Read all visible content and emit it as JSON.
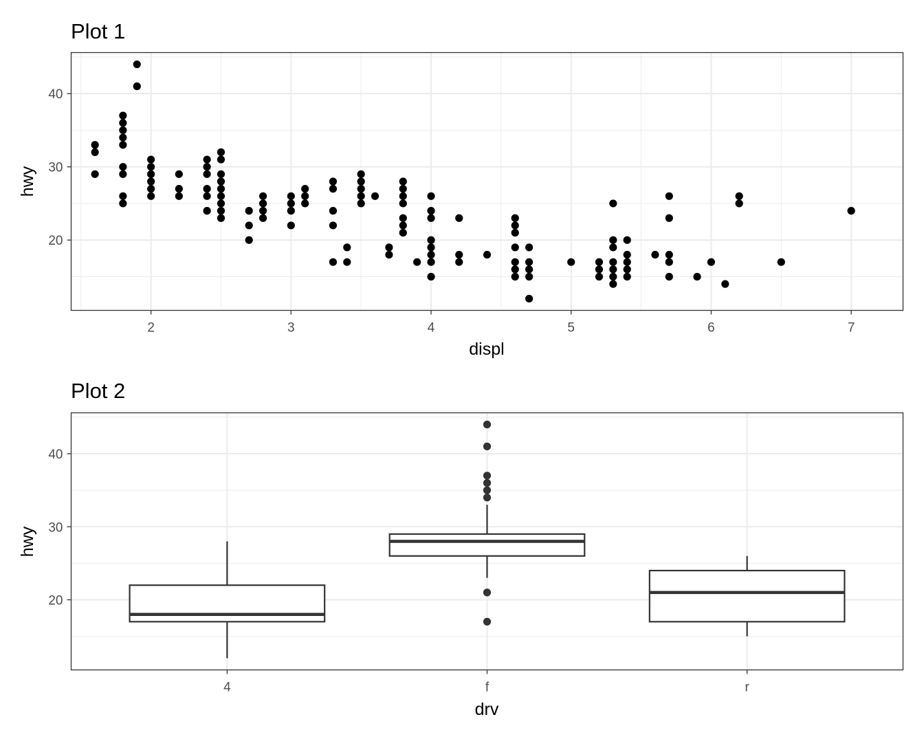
{
  "chart_data": [
    {
      "type": "scatter",
      "title": "Plot 1",
      "xlabel": "displ",
      "ylabel": "hwy",
      "xlim": [
        1.43,
        7.37
      ],
      "ylim": [
        10.4,
        45.6
      ],
      "x_ticks": [
        2,
        3,
        4,
        5,
        6,
        7
      ],
      "x_tick_labels": [
        "2",
        "3",
        "4",
        "5",
        "6",
        "7"
      ],
      "y_ticks": [
        20,
        30,
        40
      ],
      "y_tick_labels": [
        "20",
        "30",
        "40"
      ],
      "grid": true,
      "point_color": "#000000",
      "points": [
        [
          1.6,
          33
        ],
        [
          1.6,
          32
        ],
        [
          1.6,
          29
        ],
        [
          1.8,
          37
        ],
        [
          1.8,
          36
        ],
        [
          1.8,
          35
        ],
        [
          1.8,
          34
        ],
        [
          1.8,
          33
        ],
        [
          1.8,
          30
        ],
        [
          1.8,
          29
        ],
        [
          1.8,
          26
        ],
        [
          1.8,
          25
        ],
        [
          1.9,
          44
        ],
        [
          1.9,
          41
        ],
        [
          2.0,
          31
        ],
        [
          2.0,
          30
        ],
        [
          2.0,
          29
        ],
        [
          2.0,
          28
        ],
        [
          2.0,
          27
        ],
        [
          2.0,
          26
        ],
        [
          2.2,
          29
        ],
        [
          2.2,
          27
        ],
        [
          2.2,
          26
        ],
        [
          2.4,
          31
        ],
        [
          2.4,
          30
        ],
        [
          2.4,
          29
        ],
        [
          2.4,
          27
        ],
        [
          2.4,
          26
        ],
        [
          2.4,
          24
        ],
        [
          2.5,
          32
        ],
        [
          2.5,
          31
        ],
        [
          2.5,
          29
        ],
        [
          2.5,
          28
        ],
        [
          2.5,
          27
        ],
        [
          2.5,
          26
        ],
        [
          2.5,
          25
        ],
        [
          2.5,
          24
        ],
        [
          2.5,
          23
        ],
        [
          2.7,
          24
        ],
        [
          2.7,
          22
        ],
        [
          2.7,
          20
        ],
        [
          2.8,
          26
        ],
        [
          2.8,
          25
        ],
        [
          2.8,
          24
        ],
        [
          2.8,
          23
        ],
        [
          3.0,
          26
        ],
        [
          3.0,
          25
        ],
        [
          3.0,
          24
        ],
        [
          3.0,
          22
        ],
        [
          3.1,
          27
        ],
        [
          3.1,
          26
        ],
        [
          3.1,
          25
        ],
        [
          3.3,
          28
        ],
        [
          3.3,
          27
        ],
        [
          3.3,
          24
        ],
        [
          3.3,
          22
        ],
        [
          3.3,
          17
        ],
        [
          3.4,
          19
        ],
        [
          3.4,
          17
        ],
        [
          3.5,
          29
        ],
        [
          3.5,
          28
        ],
        [
          3.5,
          27
        ],
        [
          3.5,
          26
        ],
        [
          3.5,
          25
        ],
        [
          3.6,
          26
        ],
        [
          3.7,
          19
        ],
        [
          3.7,
          18
        ],
        [
          3.8,
          28
        ],
        [
          3.8,
          27
        ],
        [
          3.8,
          26
        ],
        [
          3.8,
          25
        ],
        [
          3.8,
          23
        ],
        [
          3.8,
          22
        ],
        [
          3.8,
          21
        ],
        [
          3.9,
          17
        ],
        [
          4.0,
          26
        ],
        [
          4.0,
          24
        ],
        [
          4.0,
          23
        ],
        [
          4.0,
          20
        ],
        [
          4.0,
          19
        ],
        [
          4.0,
          18
        ],
        [
          4.0,
          17
        ],
        [
          4.0,
          15
        ],
        [
          4.2,
          23
        ],
        [
          4.2,
          18
        ],
        [
          4.2,
          17
        ],
        [
          4.4,
          18
        ],
        [
          4.6,
          23
        ],
        [
          4.6,
          22
        ],
        [
          4.6,
          21
        ],
        [
          4.6,
          19
        ],
        [
          4.6,
          17
        ],
        [
          4.6,
          16
        ],
        [
          4.6,
          15
        ],
        [
          4.7,
          19
        ],
        [
          4.7,
          17
        ],
        [
          4.7,
          16
        ],
        [
          4.7,
          15
        ],
        [
          4.7,
          12
        ],
        [
          5.0,
          17
        ],
        [
          5.2,
          17
        ],
        [
          5.2,
          16
        ],
        [
          5.2,
          15
        ],
        [
          5.3,
          25
        ],
        [
          5.3,
          20
        ],
        [
          5.3,
          19
        ],
        [
          5.3,
          17
        ],
        [
          5.3,
          16
        ],
        [
          5.3,
          15
        ],
        [
          5.3,
          14
        ],
        [
          5.4,
          20
        ],
        [
          5.4,
          18
        ],
        [
          5.4,
          17
        ],
        [
          5.4,
          16
        ],
        [
          5.4,
          15
        ],
        [
          5.6,
          18
        ],
        [
          5.7,
          26
        ],
        [
          5.7,
          23
        ],
        [
          5.7,
          18
        ],
        [
          5.7,
          17
        ],
        [
          5.7,
          15
        ],
        [
          5.9,
          15
        ],
        [
          6.0,
          17
        ],
        [
          6.1,
          14
        ],
        [
          6.2,
          26
        ],
        [
          6.2,
          25
        ],
        [
          6.5,
          17
        ],
        [
          7.0,
          24
        ]
      ]
    },
    {
      "type": "box",
      "title": "Plot 2",
      "xlabel": "drv",
      "ylabel": "hwy",
      "ylim": [
        10.4,
        45.6
      ],
      "categories": [
        "4",
        "f",
        "r"
      ],
      "y_ticks": [
        20,
        30,
        40
      ],
      "y_tick_labels": [
        "20",
        "30",
        "40"
      ],
      "grid": true,
      "box_color": "#333333",
      "boxes": [
        {
          "category": "4",
          "whisker_low": 12,
          "q1": 17,
          "median": 18,
          "q3": 22,
          "whisker_high": 28,
          "outliers": []
        },
        {
          "category": "f",
          "whisker_low": 23,
          "q1": 26,
          "median": 28,
          "q3": 29,
          "whisker_high": 33,
          "outliers": [
            44,
            41,
            37,
            36,
            35,
            34,
            21,
            17
          ]
        },
        {
          "category": "r",
          "whisker_low": 15,
          "q1": 17,
          "median": 21,
          "q3": 24,
          "whisker_high": 26,
          "outliers": []
        }
      ]
    }
  ]
}
